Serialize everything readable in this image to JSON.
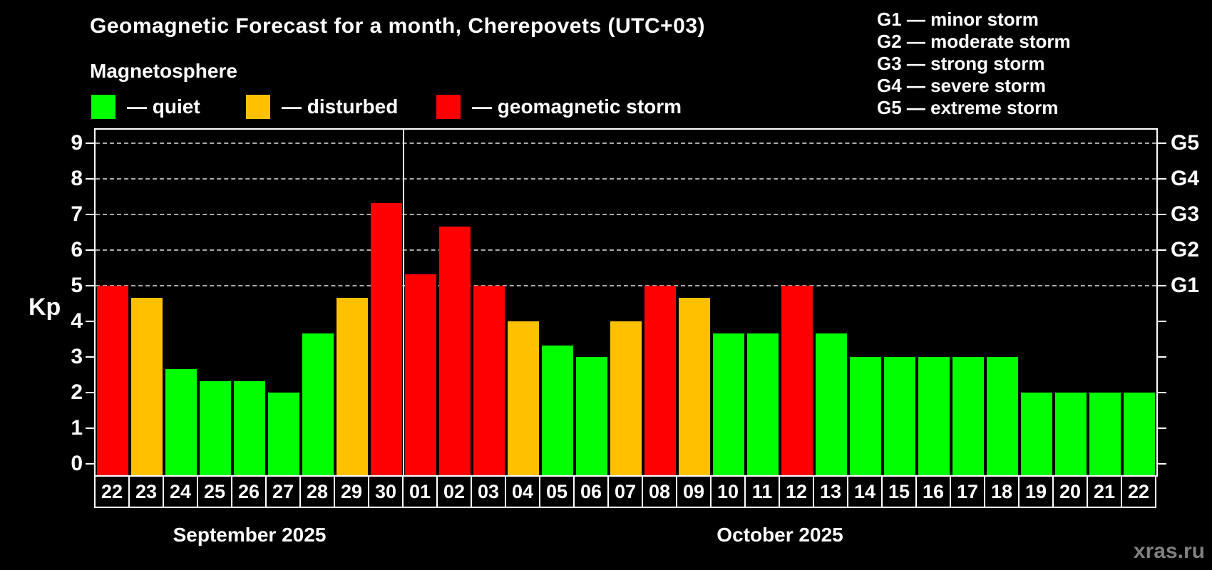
{
  "header": {
    "title": "Geomagnetic Forecast for a month, Cherepovets (UTC+03)",
    "subtitle": "Magnetosphere"
  },
  "colors": {
    "quiet": "#00ff00",
    "disturbed": "#ffc000",
    "storm": "#ff0000",
    "background": "#000000",
    "text": "#ffffff",
    "gridline": "#aaaaaa",
    "watermark": "#808080"
  },
  "legend": {
    "items": [
      {
        "key": "quiet",
        "label": "— quiet"
      },
      {
        "key": "disturbed",
        "label": "— disturbed"
      },
      {
        "key": "storm",
        "label": "— geomagnetic storm"
      }
    ]
  },
  "gscale_legend": {
    "items": [
      "G1 — minor storm",
      "G2 — moderate storm",
      "G3 — strong storm",
      "G4 — severe storm",
      "G5 — extreme storm"
    ]
  },
  "watermark": "xras.ru",
  "chart_data": {
    "type": "bar",
    "title": "Geomagnetic Forecast for a month, Cherepovets (UTC+03)",
    "ylabel": "Kp",
    "ylim": [
      0,
      9.7
    ],
    "yticks": [
      0,
      1,
      2,
      3,
      4,
      5,
      6,
      7,
      8,
      9
    ],
    "gridlines_at_kp": [
      5,
      6,
      7,
      8,
      9
    ],
    "grid": "dashed, only at storm levels Kp 5-9",
    "legend_position": "top-left",
    "right_axis": [
      {
        "kp": 5,
        "label": "G1"
      },
      {
        "kp": 6,
        "label": "G2"
      },
      {
        "kp": 7,
        "label": "G3"
      },
      {
        "kp": 8,
        "label": "G4"
      },
      {
        "kp": 9,
        "label": "G5"
      }
    ],
    "months": [
      {
        "label": "September 2025",
        "days": 9
      },
      {
        "label": "October 2025",
        "days": 22
      }
    ],
    "days": [
      {
        "date": "22",
        "month": "September 2025",
        "kp": 5.0,
        "level": "storm"
      },
      {
        "date": "23",
        "month": "September 2025",
        "kp": 4.67,
        "level": "disturbed"
      },
      {
        "date": "24",
        "month": "September 2025",
        "kp": 2.67,
        "level": "quiet"
      },
      {
        "date": "25",
        "month": "September 2025",
        "kp": 2.33,
        "level": "quiet"
      },
      {
        "date": "26",
        "month": "September 2025",
        "kp": 2.33,
        "level": "quiet"
      },
      {
        "date": "27",
        "month": "September 2025",
        "kp": 2.0,
        "level": "quiet"
      },
      {
        "date": "28",
        "month": "September 2025",
        "kp": 3.67,
        "level": "quiet"
      },
      {
        "date": "29",
        "month": "September 2025",
        "kp": 4.67,
        "level": "disturbed"
      },
      {
        "date": "30",
        "month": "September 2025",
        "kp": 7.33,
        "level": "storm"
      },
      {
        "date": "01",
        "month": "October 2025",
        "kp": 5.33,
        "level": "storm"
      },
      {
        "date": "02",
        "month": "October 2025",
        "kp": 6.67,
        "level": "storm"
      },
      {
        "date": "03",
        "month": "October 2025",
        "kp": 5.0,
        "level": "storm"
      },
      {
        "date": "04",
        "month": "October 2025",
        "kp": 4.0,
        "level": "disturbed"
      },
      {
        "date": "05",
        "month": "October 2025",
        "kp": 3.33,
        "level": "quiet"
      },
      {
        "date": "06",
        "month": "October 2025",
        "kp": 3.0,
        "level": "quiet"
      },
      {
        "date": "07",
        "month": "October 2025",
        "kp": 4.0,
        "level": "disturbed"
      },
      {
        "date": "08",
        "month": "October 2025",
        "kp": 5.0,
        "level": "storm"
      },
      {
        "date": "09",
        "month": "October 2025",
        "kp": 4.67,
        "level": "disturbed"
      },
      {
        "date": "10",
        "month": "October 2025",
        "kp": 3.67,
        "level": "quiet"
      },
      {
        "date": "11",
        "month": "October 2025",
        "kp": 3.67,
        "level": "quiet"
      },
      {
        "date": "12",
        "month": "October 2025",
        "kp": 5.0,
        "level": "storm"
      },
      {
        "date": "13",
        "month": "October 2025",
        "kp": 3.67,
        "level": "quiet"
      },
      {
        "date": "14",
        "month": "October 2025",
        "kp": 3.0,
        "level": "quiet"
      },
      {
        "date": "15",
        "month": "October 2025",
        "kp": 3.0,
        "level": "quiet"
      },
      {
        "date": "16",
        "month": "October 2025",
        "kp": 3.0,
        "level": "quiet"
      },
      {
        "date": "17",
        "month": "October 2025",
        "kp": 3.0,
        "level": "quiet"
      },
      {
        "date": "18",
        "month": "October 2025",
        "kp": 3.0,
        "level": "quiet"
      },
      {
        "date": "19",
        "month": "October 2025",
        "kp": 2.0,
        "level": "quiet"
      },
      {
        "date": "20",
        "month": "October 2025",
        "kp": 2.0,
        "level": "quiet"
      },
      {
        "date": "21",
        "month": "October 2025",
        "kp": 2.0,
        "level": "quiet"
      },
      {
        "date": "22",
        "month": "October 2025",
        "kp": 2.0,
        "level": "quiet"
      }
    ]
  }
}
